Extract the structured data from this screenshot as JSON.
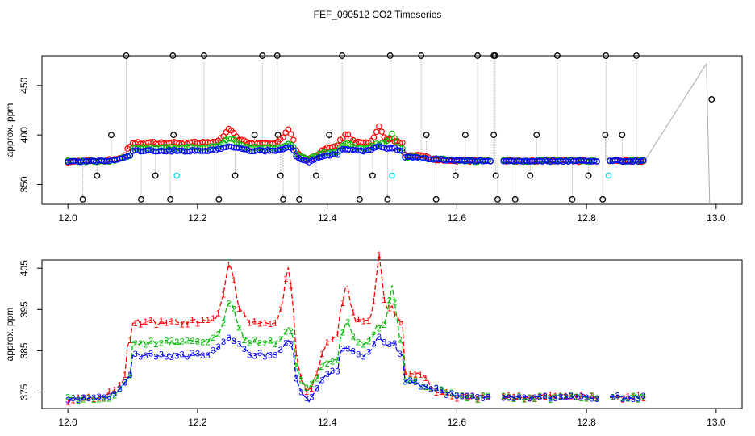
{
  "title": "FEF_090512  CO2 Timeseries",
  "colors": {
    "series_a": "#ff0000",
    "series_b": "#00bb00",
    "series_c": "#0000ff",
    "black": "#000000",
    "cyan": "#00e5ee",
    "grey": "#aaaaaa"
  },
  "chart_data": [
    {
      "type": "scatter",
      "title": "",
      "xlabel": "",
      "ylabel": "approx. ppm",
      "xlim": [
        11.96,
        13.04
      ],
      "ylim": [
        330,
        480
      ],
      "xticks": [
        "12.0",
        "12.2",
        "12.4",
        "12.6",
        "12.8",
        "13.0"
      ],
      "yticks": [
        "350",
        "400",
        "450"
      ],
      "notes": "three overlaid CO2 series (red, green, blue) plus black outlier spikes to 480/335 and cyan low points; grey line connects the last point to 13.0",
      "x_top": [
        12.09,
        12.162,
        12.21,
        12.3,
        12.323,
        12.423,
        12.497,
        12.545,
        12.632,
        12.657,
        12.659,
        12.755,
        12.83,
        12.877
      ],
      "x_bottom": [
        12.023,
        12.113,
        12.158,
        12.233,
        12.332,
        12.357,
        12.45,
        12.493,
        12.568,
        12.663,
        12.69,
        12.778,
        12.825
      ],
      "x_mid_up": [
        12.067,
        12.163,
        12.288,
        12.324,
        12.403,
        12.553,
        12.613,
        12.657,
        12.723,
        12.829,
        12.855
      ],
      "x_mid_down": [
        12.045,
        12.135,
        12.258,
        12.328,
        12.383,
        12.47,
        12.598,
        12.66,
        12.713,
        12.803
      ],
      "cyan_x": [
        12.168,
        12.5,
        12.834
      ],
      "last_point": {
        "x": 12.993,
        "y": 436
      }
    },
    {
      "type": "line",
      "title": "",
      "xlabel": "",
      "ylabel": "approx. ppm",
      "xlim": [
        11.96,
        13.04
      ],
      "ylim": [
        371,
        407
      ],
      "xticks": [
        "12.0",
        "12.2",
        "12.4",
        "12.6",
        "12.8",
        "13.0"
      ],
      "yticks": [
        "375",
        "385",
        "395",
        "405"
      ],
      "series": [
        {
          "name": "1",
          "marker": "1"
        },
        {
          "name": "2",
          "marker": "2"
        },
        {
          "name": "3",
          "marker": "3"
        }
      ],
      "gaps": [
        [
          12.655,
          12.668
        ],
        [
          12.818,
          12.832
        ]
      ],
      "x_range": [
        12.0,
        12.89
      ],
      "profile_note": "per-series values computed by the drawing script from a smooth baseline with peaks near 12.25, 12.34, 12.43, 12.48 and 12.50"
    }
  ]
}
